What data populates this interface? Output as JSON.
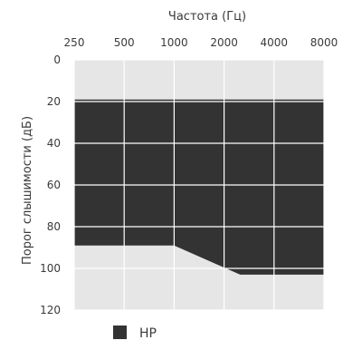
{
  "chart_data": {
    "type": "area",
    "title": "",
    "xlabel": "Частота (Гц)",
    "ylabel": "Порог слышимости (дБ)",
    "x_scale": "log2",
    "x_axis_position": "top",
    "y_inverted": true,
    "xlim": [
      250,
      8000
    ],
    "ylim": [
      0,
      120
    ],
    "x_ticks": [
      250,
      500,
      1000,
      2000,
      4000,
      8000
    ],
    "x_tick_labels": [
      "250",
      "500",
      "1000",
      "2000",
      "4000",
      "8000"
    ],
    "y_ticks": [
      0,
      20,
      40,
      60,
      80,
      100,
      120
    ],
    "y_tick_labels": [
      "0",
      "20",
      "40",
      "60",
      "80",
      "100",
      "120"
    ],
    "grid": true,
    "legend_position": "bottom-left",
    "series": [
      {
        "name": "HP",
        "color": "#333333",
        "upper_bound": [
          {
            "x": 250,
            "y": 19
          },
          {
            "x": 8000,
            "y": 19
          }
        ],
        "lower_bound": [
          {
            "x": 250,
            "y": 89
          },
          {
            "x": 1000,
            "y": 89
          },
          {
            "x": 2500,
            "y": 103
          },
          {
            "x": 8000,
            "y": 103
          }
        ]
      }
    ],
    "colors": {
      "background": "#e6e6e6",
      "grid": "#ffffff",
      "series_fill": "#333333",
      "text": "#3a3a3a"
    }
  }
}
